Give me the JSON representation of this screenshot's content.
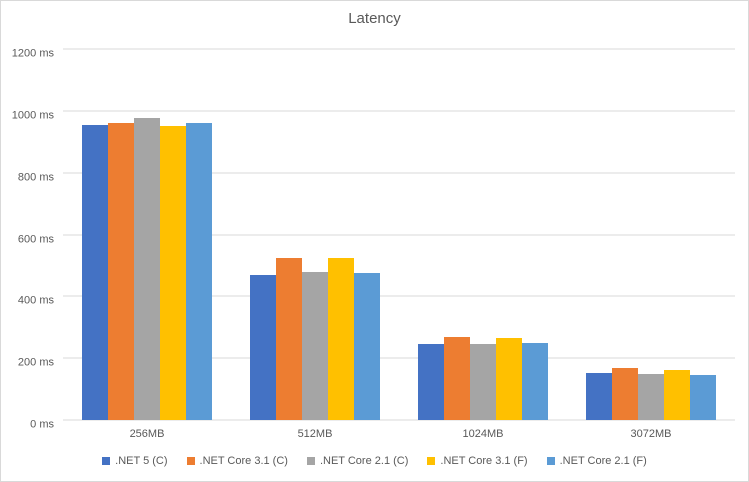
{
  "chart_data": {
    "type": "bar",
    "title": "Latency",
    "categories": [
      "256MB",
      "512MB",
      "1024MB",
      "3072MB"
    ],
    "series": [
      {
        "name": ".NET 5 (C)",
        "color": "#4472c4",
        "values": [
          955,
          470,
          245,
          151
        ]
      },
      {
        "name": ".NET Core 3.1 (C)",
        "color": "#ed7d31",
        "values": [
          960,
          525,
          270,
          167
        ]
      },
      {
        "name": ".NET Core 2.1 (C)",
        "color": "#a5a5a5",
        "values": [
          977,
          478,
          245,
          148
        ]
      },
      {
        "name": ".NET Core 3.1 (F)",
        "color": "#ffc000",
        "values": [
          950,
          523,
          266,
          163
        ]
      },
      {
        "name": ".NET Core 2.1 (F)",
        "color": "#5b9bd5",
        "values": [
          960,
          477,
          248,
          146
        ]
      }
    ],
    "xlabel": "",
    "ylabel": "",
    "ylim": [
      0,
      1200
    ],
    "y_ticks": [
      0,
      200,
      400,
      600,
      800,
      1000,
      1200
    ],
    "y_tick_suffix": " ms",
    "grid": true,
    "legend_position": "bottom",
    "colors": {
      "grid": "#d9d9d9",
      "text": "#595959",
      "background": "#ffffff"
    }
  }
}
